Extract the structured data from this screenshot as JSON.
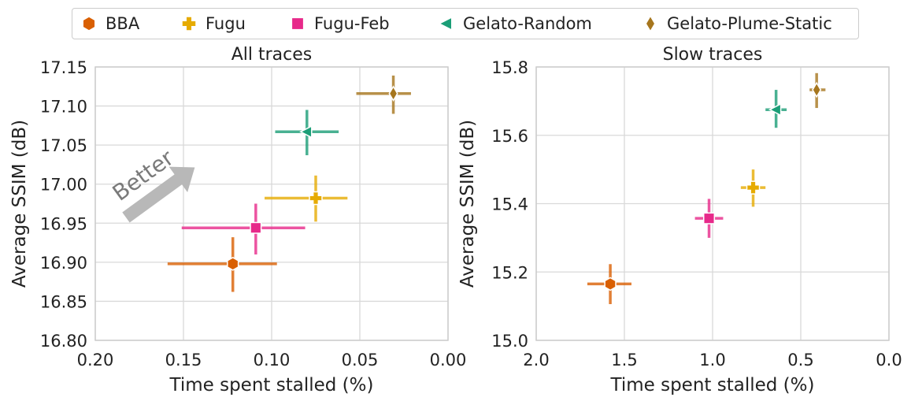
{
  "legend": {
    "items": [
      {
        "name": "BBA",
        "marker": "hexagon",
        "color": "#d95f02"
      },
      {
        "name": "Fugu",
        "marker": "plus",
        "color": "#e6ab02"
      },
      {
        "name": "Fugu-Feb",
        "marker": "square",
        "color": "#e7298a"
      },
      {
        "name": "Gelato-Random",
        "marker": "triangle-left",
        "color": "#1b9e77"
      },
      {
        "name": "Gelato-Plume-Static",
        "marker": "diamond",
        "color": "#a6761d"
      }
    ]
  },
  "chart_data": [
    {
      "type": "scatter",
      "title": "All traces",
      "xlabel": "Time spent stalled (%)",
      "ylabel": "Average SSIM (dB)",
      "xlim": [
        0.2,
        0.0
      ],
      "ylim": [
        16.8,
        17.15
      ],
      "x_reversed": true,
      "xticks": [
        "0.20",
        "0.15",
        "0.10",
        "0.05",
        "0.00"
      ],
      "yticks": [
        "16.80",
        "16.85",
        "16.90",
        "16.95",
        "17.00",
        "17.05",
        "17.10",
        "17.15"
      ],
      "grid": true,
      "annotation": "Better",
      "series": [
        {
          "name": "BBA",
          "x": 0.122,
          "y": 16.898,
          "xerr": [
            0.159,
            0.097
          ],
          "yerr": [
            16.862,
            16.932
          ]
        },
        {
          "name": "Fugu",
          "x": 0.075,
          "y": 16.982,
          "xerr": [
            0.104,
            0.057
          ],
          "yerr": [
            16.952,
            17.011
          ]
        },
        {
          "name": "Fugu-Feb",
          "x": 0.109,
          "y": 16.944,
          "xerr": [
            0.151,
            0.081
          ],
          "yerr": [
            16.91,
            16.975
          ]
        },
        {
          "name": "Gelato-Random",
          "x": 0.08,
          "y": 17.067,
          "xerr": [
            0.098,
            0.062
          ],
          "yerr": [
            17.037,
            17.095
          ]
        },
        {
          "name": "Gelato-Plume-Static",
          "x": 0.031,
          "y": 17.116,
          "xerr": [
            0.052,
            0.021
          ],
          "yerr": [
            17.09,
            17.139
          ]
        }
      ]
    },
    {
      "type": "scatter",
      "title": "Slow traces",
      "xlabel": "Time spent stalled (%)",
      "ylabel": "Average SSIM (dB)",
      "xlim": [
        2.0,
        0.0
      ],
      "ylim": [
        15.0,
        15.8
      ],
      "x_reversed": true,
      "xticks": [
        "2.0",
        "1.5",
        "1.0",
        "0.5",
        "0.0"
      ],
      "yticks": [
        "15.0",
        "15.2",
        "15.4",
        "15.6",
        "15.8"
      ],
      "grid": true,
      "series": [
        {
          "name": "BBA",
          "x": 1.58,
          "y": 15.165,
          "xerr": [
            1.71,
            1.46
          ],
          "yerr": [
            15.106,
            15.223
          ]
        },
        {
          "name": "Fugu",
          "x": 0.77,
          "y": 15.447,
          "xerr": [
            0.84,
            0.7
          ],
          "yerr": [
            15.391,
            15.5
          ]
        },
        {
          "name": "Fugu-Feb",
          "x": 1.02,
          "y": 15.357,
          "xerr": [
            1.1,
            0.94
          ],
          "yerr": [
            15.3,
            15.414
          ]
        },
        {
          "name": "Gelato-Random",
          "x": 0.64,
          "y": 15.675,
          "xerr": [
            0.7,
            0.58
          ],
          "yerr": [
            15.622,
            15.733
          ]
        },
        {
          "name": "Gelato-Plume-Static",
          "x": 0.41,
          "y": 15.733,
          "xerr": [
            0.45,
            0.36
          ],
          "yerr": [
            15.68,
            15.782
          ]
        }
      ]
    }
  ]
}
